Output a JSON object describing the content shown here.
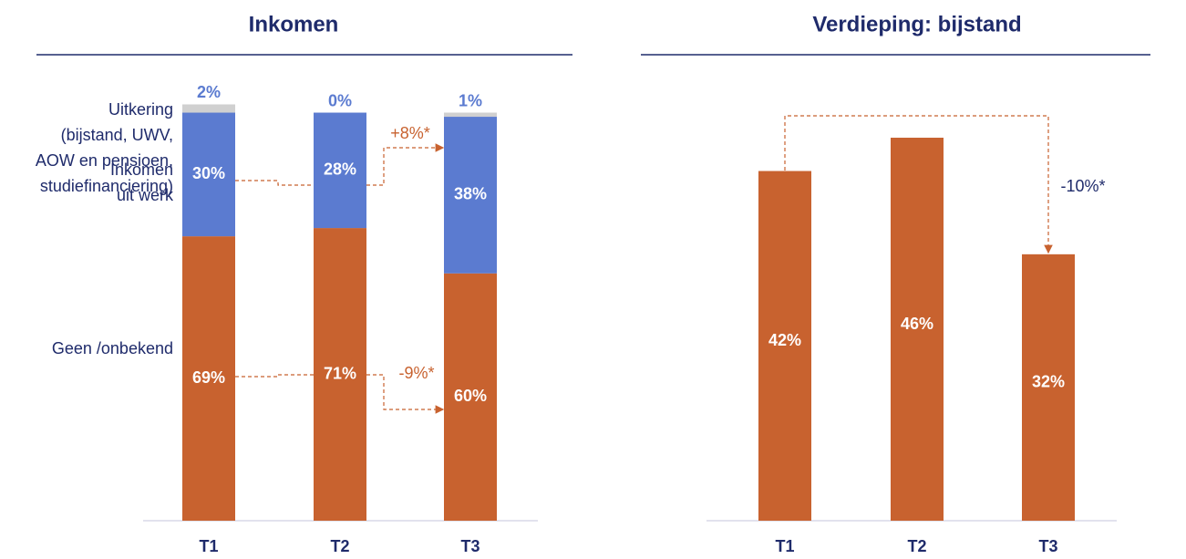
{
  "chart_data": [
    {
      "type": "stacked_bar",
      "title": "Inkomen",
      "categories": [
        "T1",
        "T2",
        "T3"
      ],
      "series": [
        {
          "name": "Uitkering\n(bijstand, UWV,\nAOW en pensioen,\nstudiefinanciering)",
          "color": "#c8622f",
          "values": [
            69,
            71,
            60
          ],
          "value_labels": [
            "69%",
            "71%",
            "60%"
          ]
        },
        {
          "name": "Inkomen\nuit werk",
          "color": "#5b7bd0",
          "values": [
            30,
            28,
            38
          ],
          "value_labels": [
            "30%",
            "28%",
            "38%"
          ]
        },
        {
          "name": "Geen /onbekend",
          "color": "#d0d0d0",
          "values": [
            2,
            0,
            1
          ],
          "value_labels": [
            "2%",
            "0%",
            "1%"
          ]
        }
      ],
      "annotations": [
        "+8%*",
        "-9%*"
      ]
    },
    {
      "type": "bar",
      "title": "Verdieping: bijstand",
      "categories": [
        "T1",
        "T2",
        "T3"
      ],
      "values": [
        42,
        46,
        32
      ],
      "value_labels": [
        "42%",
        "46%",
        "32%"
      ],
      "color": "#c8622f",
      "annotations": [
        "-10%*"
      ]
    }
  ]
}
